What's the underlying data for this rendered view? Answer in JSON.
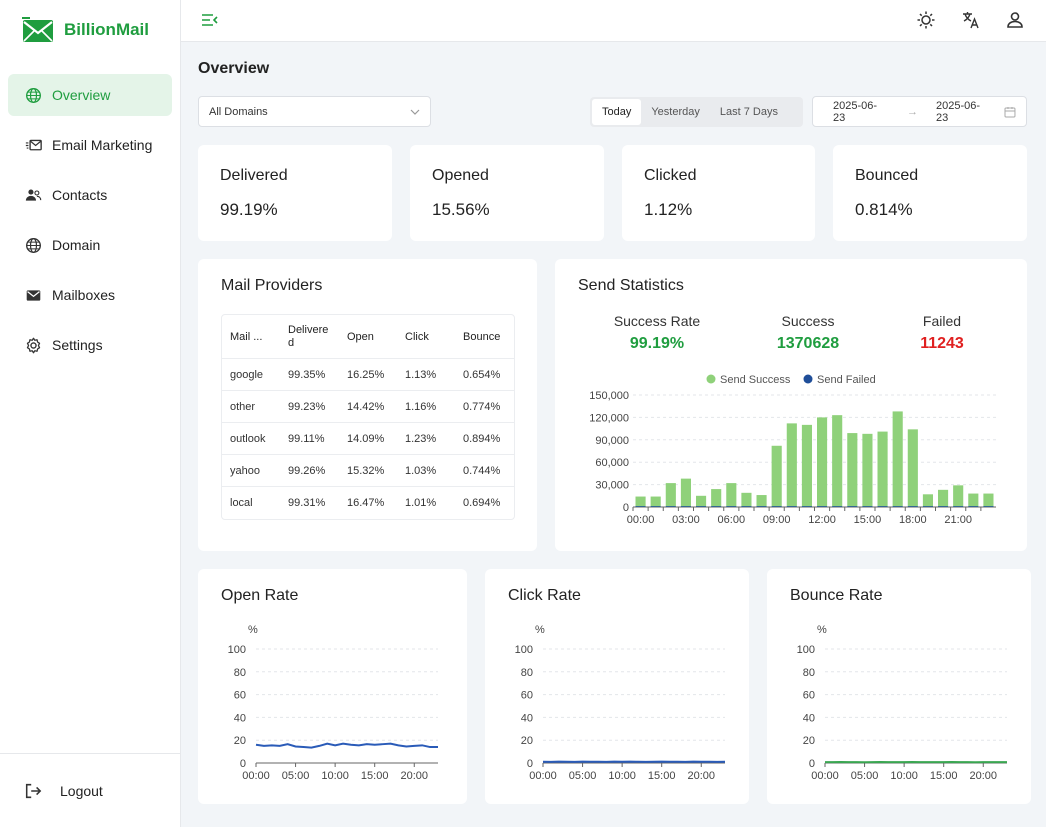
{
  "app": {
    "name": "BillionMail"
  },
  "sidebar": {
    "items": [
      {
        "label": "Overview",
        "icon": "globe-icon",
        "active": true
      },
      {
        "label": "Email Marketing",
        "icon": "mail-campaign-icon",
        "active": false
      },
      {
        "label": "Contacts",
        "icon": "users-icon",
        "active": false
      },
      {
        "label": "Domain",
        "icon": "globe-icon",
        "active": false
      },
      {
        "label": "Mailboxes",
        "icon": "envelope-icon",
        "active": false
      },
      {
        "label": "Settings",
        "icon": "gear-icon",
        "active": false
      }
    ],
    "logout": "Logout"
  },
  "page": {
    "title": "Overview"
  },
  "filters": {
    "domain": "All Domains",
    "ranges": [
      "Today",
      "Yesterday",
      "Last 7 Days"
    ],
    "active_range": "Today",
    "date_start": "2025-06-23",
    "date_end": "2025-06-23"
  },
  "kpis": [
    {
      "label": "Delivered",
      "value": "99.19%"
    },
    {
      "label": "Opened",
      "value": "15.56%"
    },
    {
      "label": "Clicked",
      "value": "1.12%"
    },
    {
      "label": "Bounced",
      "value": "0.814%"
    }
  ],
  "providers": {
    "title": "Mail Providers",
    "columns": [
      "Mail ...",
      "Delivered",
      "Open",
      "Click",
      "Bounce"
    ],
    "rows": [
      [
        "google",
        "99.35%",
        "16.25%",
        "1.13%",
        "0.654%"
      ],
      [
        "other",
        "99.23%",
        "14.42%",
        "1.16%",
        "0.774%"
      ],
      [
        "outlook",
        "99.11%",
        "14.09%",
        "1.23%",
        "0.894%"
      ],
      [
        "yahoo",
        "99.26%",
        "15.32%",
        "1.03%",
        "0.744%"
      ],
      [
        "local",
        "99.31%",
        "16.47%",
        "1.01%",
        "0.694%"
      ]
    ]
  },
  "send_stats": {
    "title": "Send Statistics",
    "success_rate_label": "Success Rate",
    "success_rate": "99.19%",
    "success_label": "Success",
    "success": "1370628",
    "failed_label": "Failed",
    "failed": "11243",
    "colors": {
      "success": "#1f9d3f",
      "failed": "#e02020"
    }
  },
  "chart_data": [
    {
      "type": "bar",
      "title": "Send Statistics",
      "legend": [
        "Send Success",
        "Send Failed"
      ],
      "legend_position": "top",
      "categories": [
        "00:00",
        "01:00",
        "02:00",
        "03:00",
        "04:00",
        "05:00",
        "06:00",
        "07:00",
        "08:00",
        "09:00",
        "10:00",
        "11:00",
        "12:00",
        "13:00",
        "14:00",
        "15:00",
        "16:00",
        "17:00",
        "18:00",
        "19:00",
        "20:00",
        "21:00",
        "22:00",
        "23:00"
      ],
      "x_tick_labels": [
        "00:00",
        "03:00",
        "06:00",
        "09:00",
        "12:00",
        "15:00",
        "18:00",
        "21:00"
      ],
      "y_tick_labels": [
        "0",
        "30,000",
        "60,000",
        "90,000",
        "120,000",
        "150,000"
      ],
      "ylim": [
        0,
        150000
      ],
      "series": [
        {
          "name": "Send Success",
          "color": "#8fd17a",
          "values": [
            14000,
            14000,
            32000,
            38000,
            15000,
            24000,
            32000,
            19000,
            16000,
            82000,
            112000,
            110000,
            120000,
            123000,
            99000,
            98000,
            101000,
            128000,
            104000,
            17000,
            23000,
            29000,
            18000,
            18000
          ]
        },
        {
          "name": "Send Failed",
          "color": "#1f4e99",
          "values": [
            100,
            100,
            250,
            300,
            120,
            200,
            250,
            150,
            130,
            670,
            900,
            890,
            970,
            1000,
            800,
            790,
            820,
            1040,
            840,
            140,
            190,
            240,
            150,
            150
          ]
        }
      ],
      "grid": true
    },
    {
      "type": "line",
      "title": "Open Rate",
      "ylabel": "%",
      "ylim": [
        0,
        100
      ],
      "y_tick_labels": [
        "0",
        "20",
        "40",
        "60",
        "80",
        "100"
      ],
      "x_tick_labels": [
        "00:00",
        "05:00",
        "10:00",
        "15:00",
        "20:00"
      ],
      "color": "#2a5bb8",
      "x": [
        "00:00",
        "01:00",
        "02:00",
        "03:00",
        "04:00",
        "05:00",
        "06:00",
        "07:00",
        "08:00",
        "09:00",
        "10:00",
        "11:00",
        "12:00",
        "13:00",
        "14:00",
        "15:00",
        "16:00",
        "17:00",
        "18:00",
        "19:00",
        "20:00",
        "21:00",
        "22:00",
        "23:00"
      ],
      "values": [
        16,
        15,
        15.5,
        15,
        16.5,
        14.5,
        14,
        13.5,
        15,
        17,
        15.5,
        17,
        16,
        15.5,
        16.5,
        16,
        16.5,
        17,
        15.5,
        14.5,
        15,
        15.5,
        14,
        14
      ],
      "grid": true
    },
    {
      "type": "line",
      "title": "Click Rate",
      "ylabel": "%",
      "ylim": [
        0,
        100
      ],
      "y_tick_labels": [
        "0",
        "20",
        "40",
        "60",
        "80",
        "100"
      ],
      "x_tick_labels": [
        "00:00",
        "05:00",
        "10:00",
        "15:00",
        "20:00"
      ],
      "color": "#2a5bb8",
      "x": [
        "00:00",
        "01:00",
        "02:00",
        "03:00",
        "04:00",
        "05:00",
        "06:00",
        "07:00",
        "08:00",
        "09:00",
        "10:00",
        "11:00",
        "12:00",
        "13:00",
        "14:00",
        "15:00",
        "16:00",
        "17:00",
        "18:00",
        "19:00",
        "20:00",
        "21:00",
        "22:00",
        "23:00"
      ],
      "values": [
        1.1,
        1.0,
        1.2,
        1.1,
        1.0,
        1.2,
        1.1,
        1.1,
        1.0,
        1.2,
        1.1,
        1.2,
        1.1,
        1.0,
        1.1,
        1.2,
        1.1,
        1.1,
        1.0,
        1.2,
        1.1,
        1.1,
        1.0,
        1.1
      ],
      "grid": true
    },
    {
      "type": "line",
      "title": "Bounce Rate",
      "ylabel": "%",
      "ylim": [
        0,
        100
      ],
      "y_tick_labels": [
        "0",
        "20",
        "40",
        "60",
        "80",
        "100"
      ],
      "x_tick_labels": [
        "00:00",
        "05:00",
        "10:00",
        "15:00",
        "20:00"
      ],
      "color": "#3aa651",
      "x": [
        "00:00",
        "01:00",
        "02:00",
        "03:00",
        "04:00",
        "05:00",
        "06:00",
        "07:00",
        "08:00",
        "09:00",
        "10:00",
        "11:00",
        "12:00",
        "13:00",
        "14:00",
        "15:00",
        "16:00",
        "17:00",
        "18:00",
        "19:00",
        "20:00",
        "21:00",
        "22:00",
        "23:00"
      ],
      "values": [
        0.8,
        0.8,
        0.9,
        0.8,
        0.8,
        0.7,
        0.8,
        0.9,
        0.8,
        0.8,
        0.8,
        0.9,
        0.8,
        0.8,
        0.8,
        0.8,
        0.9,
        0.8,
        0.8,
        0.7,
        0.8,
        0.8,
        0.8,
        0.8
      ],
      "grid": true
    }
  ]
}
